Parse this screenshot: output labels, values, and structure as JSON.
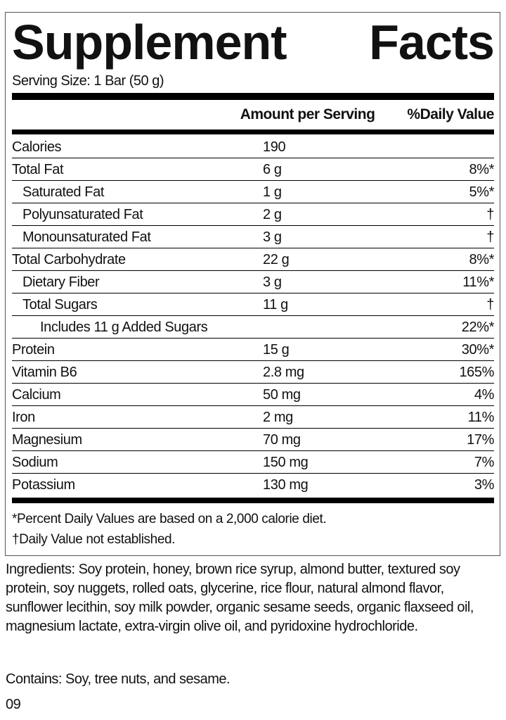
{
  "title": "Supplement Facts",
  "serving_size": "Serving Size: 1 Bar (50 g)",
  "header": {
    "amount": "Amount per Serving",
    "dv": "%Daily Value"
  },
  "rows": [
    {
      "name": "Calories",
      "amount": "190"
    },
    {
      "name": "Total Fat",
      "amount": "6 g",
      "dv": "8%*"
    },
    {
      "name": "Saturated Fat",
      "amount": "1 g",
      "dv": "5%*"
    },
    {
      "name": "Polyunsaturated Fat",
      "amount": "2 g",
      "dv": "†"
    },
    {
      "name": "Monounsaturated Fat",
      "amount": "3 g",
      "dv": "†"
    },
    {
      "name": "Total Carbohydrate",
      "amount": "22 g",
      "dv": "8%*"
    },
    {
      "name": "Dietary Fiber",
      "amount": "3 g",
      "dv": "11%*"
    },
    {
      "name": "Total Sugars",
      "amount": "11 g",
      "dv": "†"
    },
    {
      "name": "Includes 11 g Added Sugars",
      "dv": "22%*"
    },
    {
      "name": "Protein",
      "amount": "15 g",
      "dv": "30%*"
    },
    {
      "name": "Vitamin B6",
      "amount": "2.8 mg",
      "dv": "165%"
    },
    {
      "name": "Calcium",
      "amount": "50 mg",
      "dv": "4%"
    },
    {
      "name": "Iron",
      "amount": "2 mg",
      "dv": "11%"
    },
    {
      "name": "Magnesium",
      "amount": "70 mg",
      "dv": "17%"
    },
    {
      "name": "Sodium",
      "amount": "150 mg",
      "dv": "7%"
    },
    {
      "name": "Potassium",
      "amount": "130 mg",
      "dv": "3%"
    }
  ],
  "footnotes": [
    "*Percent Daily Values are based on a 2,000 calorie diet.",
    "†Daily Value not established."
  ],
  "ingredients": "Ingredients: Soy protein, honey, brown rice syrup, almond butter, textured soy protein, soy nuggets, rolled oats, glycerine, rice flour, natural almond flavor, sunflower lecithin, soy milk powder, organic sesame seeds, organic flaxseed oil, magnesium lactate, extra-virgin olive oil, and pyridoxine hydrochloride.",
  "contains": "Contains: Soy, tree nuts, and sesame.",
  "code": "09"
}
